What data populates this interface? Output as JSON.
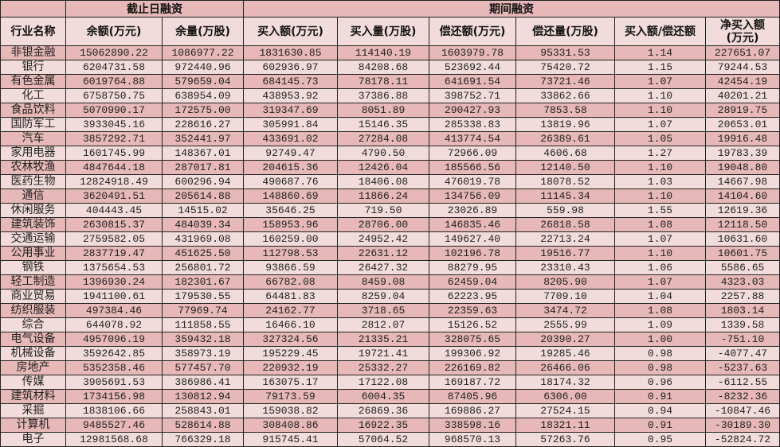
{
  "colors": {
    "dark_row": "#e6b8b7",
    "light_row": "#f2dcdb",
    "border": "#222222"
  },
  "header": {
    "group_blank": "",
    "group1": "截止日融资",
    "group2": "期间融资",
    "columns": [
      "行业名称",
      "余额(万元)",
      "余量(万股)",
      "买入额(万元)",
      "买入量(万股)",
      "偿还额(万元)",
      "偿还量(万股)",
      "买入额/偿还额",
      "净买入额\n(万元)"
    ]
  },
  "rows": [
    [
      "非银金融",
      "15062890.22",
      "1086977.22",
      "1831630.85",
      "114140.19",
      "1603979.78",
      "95331.53",
      "1.14",
      "227651.07"
    ],
    [
      "银行",
      "6204731.58",
      "972440.96",
      "602936.97",
      "84208.68",
      "523692.44",
      "75420.72",
      "1.15",
      "79244.53"
    ],
    [
      "有色金属",
      "6019764.88",
      "579659.04",
      "684145.73",
      "78178.11",
      "641691.54",
      "73721.46",
      "1.07",
      "42454.19"
    ],
    [
      "化工",
      "6758750.75",
      "638954.09",
      "438953.92",
      "37386.88",
      "398752.71",
      "33862.66",
      "1.10",
      "40201.21"
    ],
    [
      "食品饮料",
      "5070990.17",
      "172575.00",
      "319347.69",
      "8051.89",
      "290427.93",
      "7853.58",
      "1.10",
      "28919.75"
    ],
    [
      "国防军工",
      "3933045.16",
      "228616.27",
      "305991.84",
      "15146.35",
      "285338.83",
      "13819.96",
      "1.07",
      "20653.01"
    ],
    [
      "汽车",
      "3857292.71",
      "352441.97",
      "433691.02",
      "27284.08",
      "413774.54",
      "26389.61",
      "1.05",
      "19916.48"
    ],
    [
      "家用电器",
      "1601745.99",
      "148367.01",
      "92749.47",
      "4790.50",
      "72966.09",
      "4606.68",
      "1.27",
      "19783.39"
    ],
    [
      "农林牧渔",
      "4847644.18",
      "287017.81",
      "204615.36",
      "12426.04",
      "185566.56",
      "12140.50",
      "1.10",
      "19048.80"
    ],
    [
      "医药生物",
      "12824918.49",
      "600296.94",
      "490687.76",
      "18406.08",
      "476019.78",
      "18078.52",
      "1.03",
      "14667.98"
    ],
    [
      "通信",
      "3620491.51",
      "205614.88",
      "148860.69",
      "11866.24",
      "134756.09",
      "11145.34",
      "1.10",
      "14104.60"
    ],
    [
      "休闲服务",
      "404443.45",
      "14515.02",
      "35646.25",
      "719.50",
      "23026.89",
      "559.98",
      "1.55",
      "12619.36"
    ],
    [
      "建筑装饰",
      "2630815.37",
      "484039.34",
      "158953.96",
      "28706.00",
      "146835.46",
      "26818.58",
      "1.08",
      "12118.50"
    ],
    [
      "交通运输",
      "2759582.05",
      "431969.08",
      "160259.00",
      "24952.42",
      "149627.40",
      "22713.24",
      "1.07",
      "10631.60"
    ],
    [
      "公用事业",
      "2837719.47",
      "451625.50",
      "112798.53",
      "22631.12",
      "102196.78",
      "19516.77",
      "1.10",
      "10601.75"
    ],
    [
      "钢铁",
      "1375654.53",
      "256801.72",
      "93866.59",
      "26427.32",
      "88279.95",
      "23310.43",
      "1.06",
      "5586.65"
    ],
    [
      "轻工制造",
      "1396930.24",
      "182301.67",
      "66782.08",
      "8459.08",
      "62459.04",
      "8205.90",
      "1.07",
      "4323.03"
    ],
    [
      "商业贸易",
      "1941100.61",
      "179530.55",
      "64481.83",
      "8259.04",
      "62223.95",
      "7709.10",
      "1.04",
      "2257.88"
    ],
    [
      "纺织服装",
      "497384.46",
      "77969.74",
      "24162.77",
      "3718.65",
      "22359.63",
      "3474.72",
      "1.08",
      "1803.14"
    ],
    [
      "综合",
      "644078.92",
      "111858.55",
      "16466.10",
      "2812.07",
      "15126.52",
      "2555.99",
      "1.09",
      "1339.58"
    ],
    [
      "电气设备",
      "4957096.19",
      "359432.18",
      "327324.56",
      "21335.21",
      "328075.65",
      "20390.27",
      "1.00",
      "-751.10"
    ],
    [
      "机械设备",
      "3592642.85",
      "358973.19",
      "195229.45",
      "19721.41",
      "199306.92",
      "19285.46",
      "0.98",
      "-4077.47"
    ],
    [
      "房地产",
      "5352358.46",
      "577457.70",
      "220932.19",
      "25332.27",
      "226169.82",
      "26466.06",
      "0.98",
      "-5237.63"
    ],
    [
      "传媒",
      "3905691.53",
      "386986.41",
      "163075.17",
      "17122.08",
      "169187.72",
      "18174.32",
      "0.96",
      "-6112.55"
    ],
    [
      "建筑材料",
      "1734156.98",
      "130812.94",
      "79173.59",
      "6004.35",
      "87405.96",
      "6306.00",
      "0.91",
      "-8232.36"
    ],
    [
      "采掘",
      "1838106.66",
      "258843.01",
      "159038.82",
      "26869.36",
      "169886.27",
      "27524.15",
      "0.94",
      "-10847.46"
    ],
    [
      "计算机",
      "9485527.46",
      "528614.88",
      "308408.86",
      "16922.35",
      "338598.16",
      "18321.11",
      "0.91",
      "-30189.30"
    ],
    [
      "电子",
      "12981568.68",
      "766329.18",
      "915745.41",
      "57064.52",
      "968570.13",
      "57263.76",
      "0.95",
      "-52824.72"
    ]
  ]
}
